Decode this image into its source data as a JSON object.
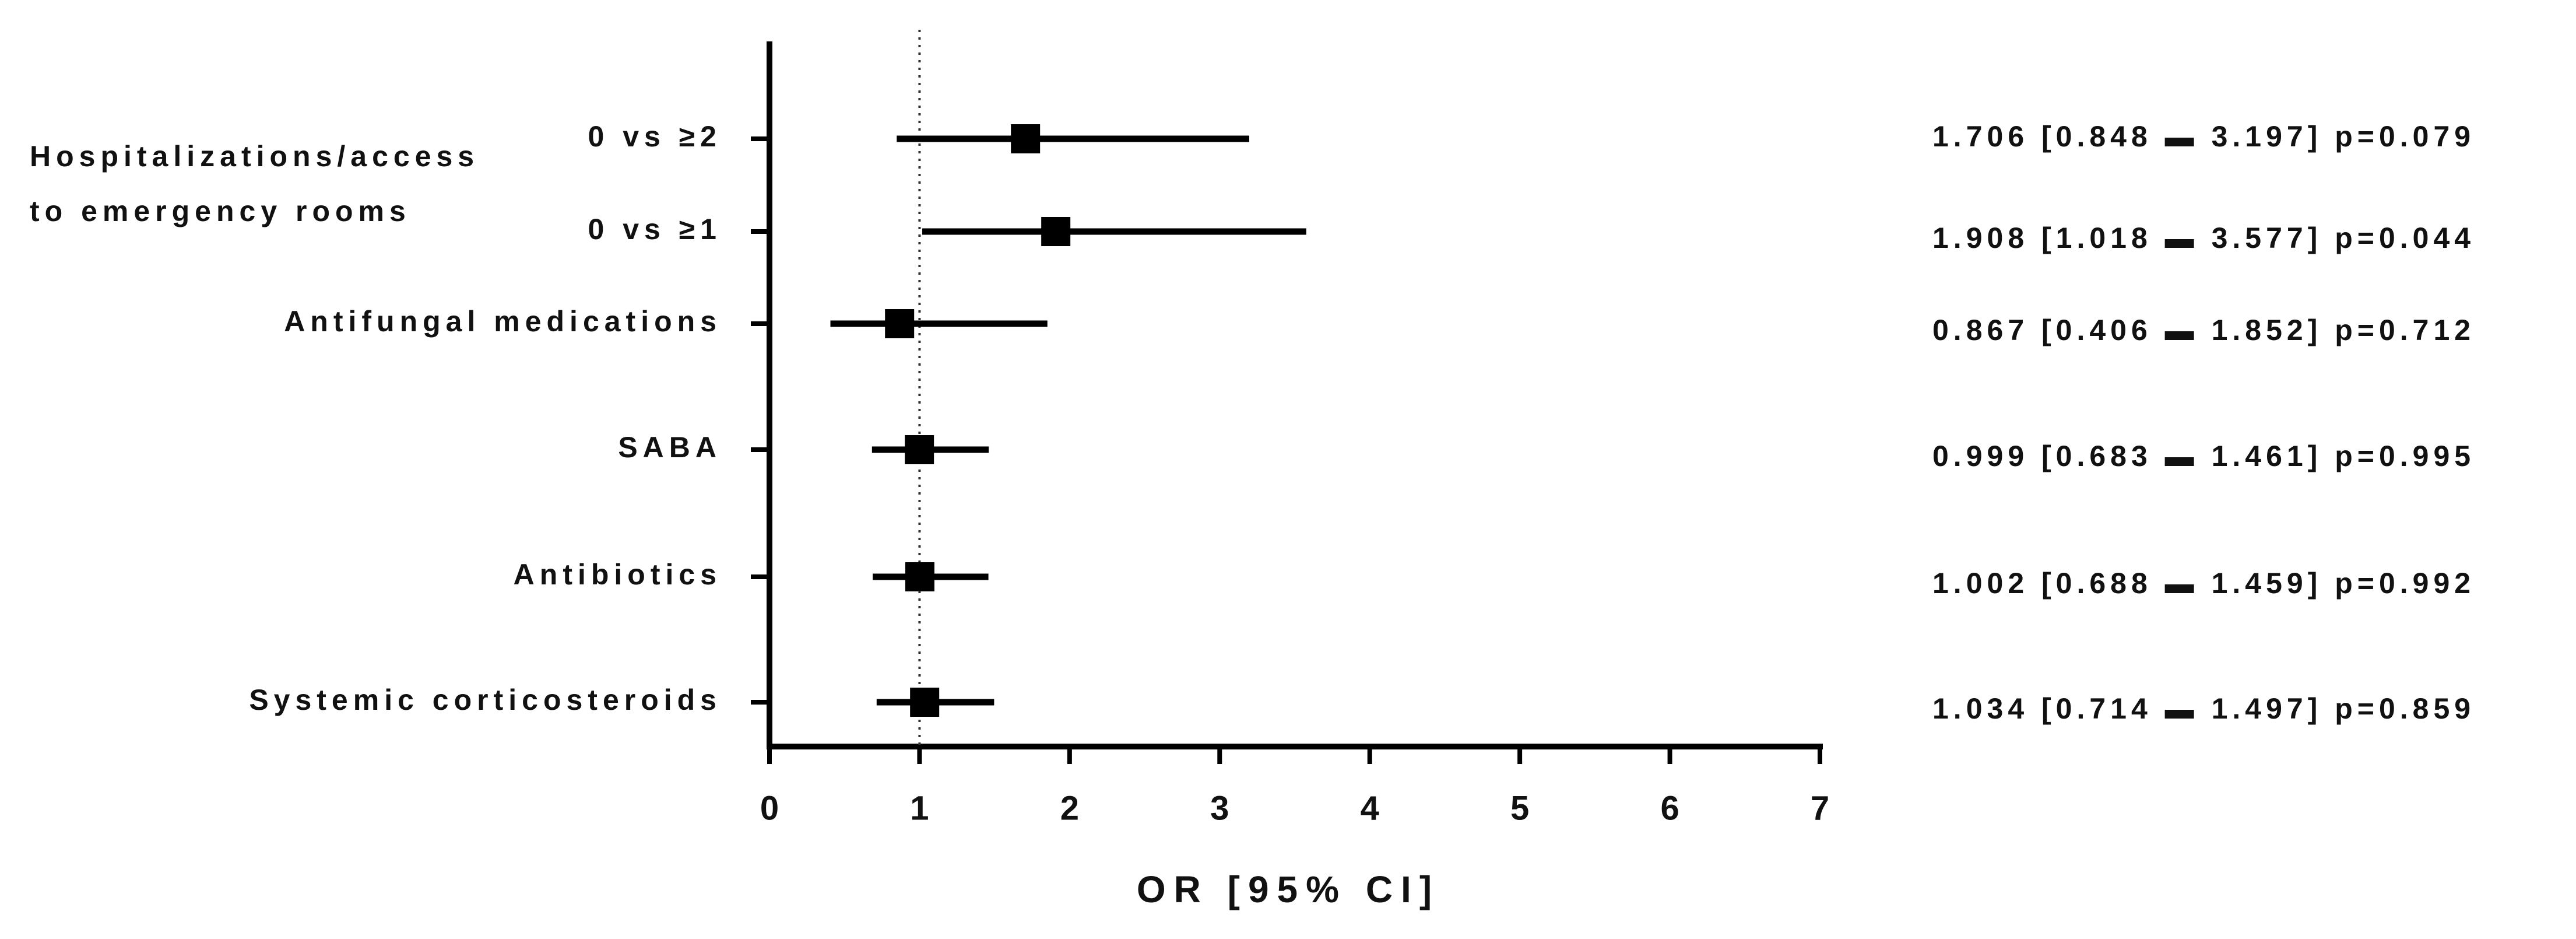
{
  "chart_data": {
    "type": "forest",
    "group_label": [
      "Hospitalizations/access",
      "to emergency rooms"
    ],
    "categories": [
      "0 vs ≥2",
      "0 vs ≥1",
      "Antifungal medications",
      "SABA",
      "Antibiotics",
      "Systemic corticosteroids"
    ],
    "values": [
      1.706,
      1.908,
      0.867,
      0.999,
      1.002,
      1.034
    ],
    "lower": [
      0.848,
      1.018,
      0.406,
      0.683,
      0.688,
      0.714
    ],
    "upper": [
      3.197,
      3.577,
      1.852,
      1.461,
      1.459,
      1.497
    ],
    "value_labels": [
      "1.706 [0.848 ▬ 3.197]  p=0.079",
      "1.908 [1.018 ▬ 3.577]  p=0.044",
      "0.867 [0.406 ▬ 1.852]  p=0.712",
      "0.999 [0.683 ▬ 1.461]  p=0.995",
      "1.002 [0.688 ▬ 1.459]  p=0.992",
      "1.034 [0.714 ▬ 1.497]  p=0.859"
    ],
    "xlabel": "OR [95% CI]",
    "xlim": [
      0,
      7
    ],
    "xticks": [
      0,
      1,
      2,
      3,
      4,
      5,
      6,
      7
    ],
    "reference_line": 1,
    "color": "#000000"
  }
}
